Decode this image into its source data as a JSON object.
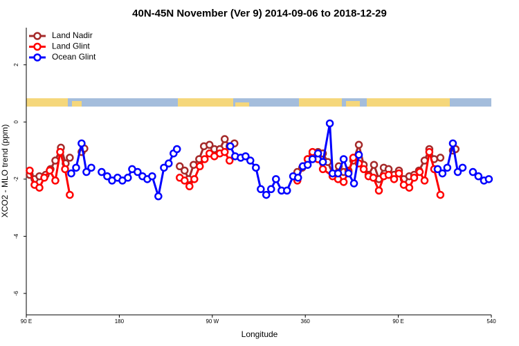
{
  "chart_data": {
    "type": "line",
    "title": "40N-45N November (Ver 9)   2014-09-06 to 2018-12-29",
    "x_label": "Longitude",
    "y_label": "XCO2 - MLO trend (ppm)",
    "xlim": [
      90,
      540
    ],
    "ylim": [
      -6.75,
      3.3
    ],
    "xticks": [
      {
        "value": 90,
        "label": "90 E"
      },
      180,
      {
        "value": 270,
        "label": "90 W"
      },
      360,
      {
        "value": 450,
        "label": "90 E"
      },
      540
    ],
    "yticks": [
      -6,
      -4,
      -2,
      0,
      2
    ],
    "legend": "top-left",
    "series": [
      {
        "name": "Land Nadir",
        "color": "#a52a2a",
        "x": [
          93.3,
          98,
          102.7,
          108.7,
          113.4,
          118.1,
          123.5,
          128.1,
          132.1,
          null,
          143.5,
          146.2,
          null,
          238.5,
          243.2,
          247.2,
          251.9,
          257.3,
          261.9,
          267.3,
          272,
          277.3,
          282,
          286.7,
          291.4,
          null,
          352.3,
          357,
          362.3,
          367,
          372.3,
          377,
          381.7,
          387,
          392.4,
          397.1,
          401.8,
          406.4,
          411.8,
          416.5,
          421.2,
          426.5,
          431.2,
          435.9,
          440.6,
          445.9,
          450.6,
          455.3,
          460.6,
          465.3,
          470,
          475.4,
          480,
          484.7,
          490.7,
          null,
          502.8,
          505.4
        ],
        "values": [
          -1.85,
          -2.0,
          -1.9,
          -1.85,
          -1.65,
          -1.35,
          -0.9,
          -1.45,
          -1.25,
          null,
          -1.05,
          -0.93,
          null,
          -1.55,
          -1.7,
          -2.0,
          -1.5,
          -1.3,
          -0.85,
          -0.8,
          -0.95,
          -0.95,
          -0.6,
          -0.85,
          -0.75,
          null,
          -1.75,
          -1.6,
          -1.3,
          -1.1,
          -1.05,
          -1.1,
          -1.4,
          -1.85,
          -1.55,
          -1.75,
          -1.7,
          -1.35,
          -0.8,
          -1.5,
          -1.85,
          -1.5,
          -2.0,
          -1.6,
          -1.65,
          -1.85,
          -1.7,
          -2.0,
          -1.9,
          -1.85,
          -1.7,
          -1.35,
          -0.95,
          -1.3,
          -1.25,
          null,
          -1.0,
          -0.95
        ]
      },
      {
        "name": "Land Glint",
        "color": "#ff0000",
        "x": [
          93.3,
          98,
          102.7,
          107.4,
          112.7,
          118.1,
          122.8,
          127.5,
          132.1,
          null,
          238.5,
          243.2,
          247.9,
          252.6,
          257.9,
          262.6,
          267.3,
          272,
          277.3,
          282,
          286.7,
          null,
          352.3,
          357.6,
          362.3,
          367,
          372.3,
          377,
          386.4,
          391.7,
          397.1,
          401.8,
          406.4,
          411.8,
          416.5,
          421.2,
          425.8,
          431.2,
          435.9,
          440.6,
          445.9,
          450.6,
          455.3,
          460.6,
          465.3,
          470.7,
          475.4,
          480,
          484.7,
          490.7
        ],
        "values": [
          -1.7,
          -2.2,
          -2.3,
          -1.95,
          -1.7,
          -2.05,
          -1.05,
          -1.65,
          -2.55,
          null,
          -1.95,
          -2.05,
          -2.25,
          -2.0,
          -1.55,
          -1.3,
          -1.1,
          -1.2,
          -1.1,
          -1.05,
          -1.35,
          null,
          -2.05,
          -1.55,
          -1.3,
          -1.05,
          -1.3,
          -1.65,
          -1.9,
          -2.0,
          -2.1,
          -1.75,
          -1.25,
          -1.45,
          -1.65,
          -1.9,
          -1.95,
          -2.4,
          -1.9,
          -1.85,
          -2.0,
          -1.8,
          -2.2,
          -2.3,
          -1.95,
          -1.75,
          -2.05,
          -1.05,
          -1.65,
          -2.55
        ]
      },
      {
        "name": "Ocean Glint",
        "color": "#0000ff",
        "x": [
          133.5,
          138.2,
          143.5,
          148.2,
          152.9,
          null,
          162.9,
          168.3,
          173,
          178.3,
          183,
          188.3,
          192.4,
          197.7,
          202.4,
          207.1,
          211.8,
          217.8,
          223.2,
          227.8,
          232.5,
          235.8,
          null,
          287.4,
          292.1,
          297.5,
          302.2,
          306.8,
          312.2,
          316.9,
          322.2,
          326.9,
          331.6,
          337,
          342.3,
          348.2,
          353,
          357.6,
          362.3,
          367,
          372.3,
          377,
          383.7,
          386.4,
          391.7,
          397.1,
          401.8,
          407.1,
          411.8,
          null,
          488.1,
          492.7,
          497.4,
          502.8,
          507.5,
          512.2,
          null,
          522.2,
          527.5,
          532.9,
          537.6
        ],
        "values": [
          -1.8,
          -1.6,
          -0.75,
          -1.75,
          -1.6,
          null,
          -1.75,
          -1.9,
          -2.05,
          -1.95,
          -2.05,
          -1.95,
          -1.65,
          -1.75,
          -1.9,
          -2.0,
          -1.9,
          -2.6,
          -1.6,
          -1.45,
          -1.1,
          -0.95,
          null,
          -0.85,
          -1.2,
          -1.25,
          -1.2,
          -1.35,
          -1.6,
          -2.35,
          -2.55,
          -2.35,
          -2.0,
          -2.4,
          -2.4,
          -1.9,
          -1.95,
          -1.55,
          -1.5,
          -1.3,
          -1.1,
          -1.4,
          -0.05,
          -1.8,
          -1.8,
          -1.3,
          -1.8,
          -2.15,
          -1.15,
          null,
          -1.65,
          -1.8,
          -1.6,
          -0.75,
          -1.75,
          -1.6,
          null,
          -1.75,
          -1.9,
          -2.05,
          -2.0
        ]
      }
    ]
  }
}
